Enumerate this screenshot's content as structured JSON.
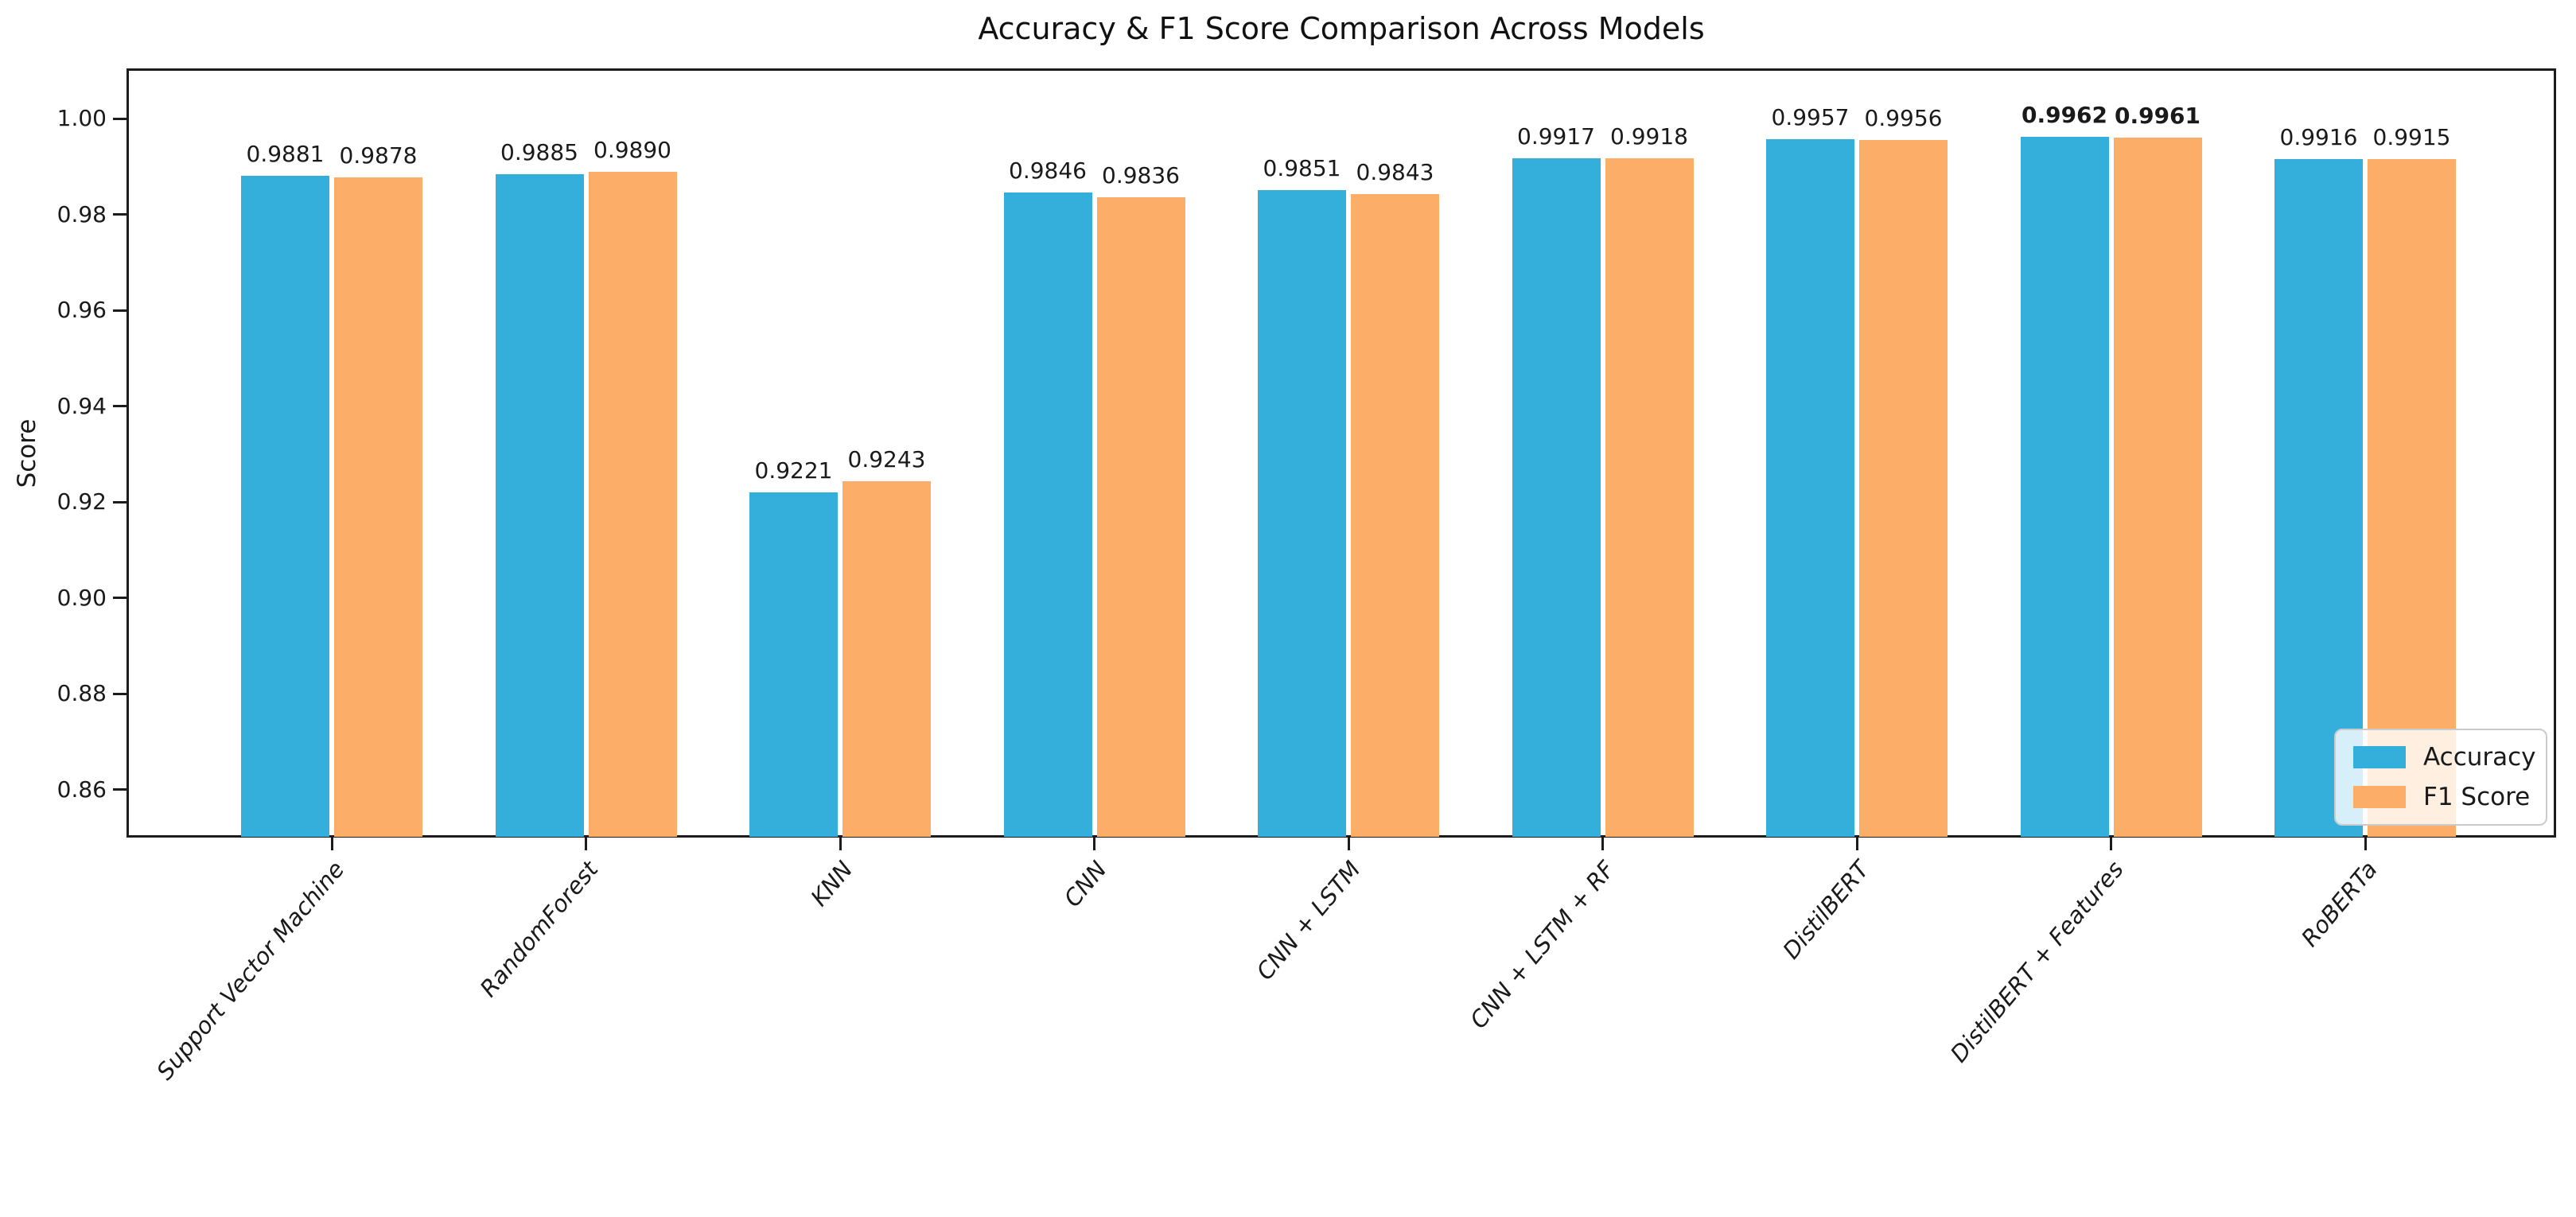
{
  "chart_data": {
    "type": "bar",
    "title": "Accuracy & F1 Score Comparison Across Models",
    "xlabel": "",
    "ylabel": "Score",
    "categories": [
      "Support Vector Machine",
      "RandomForest",
      "KNN",
      "CNN",
      "CNN + LSTM",
      "CNN + LSTM + RF",
      "DistilBERT",
      "DistilBERT + Features",
      "RoBERTa"
    ],
    "series": [
      {
        "name": "Accuracy",
        "color": "#34AEDA",
        "values": [
          0.9881,
          0.9885,
          0.9221,
          0.9846,
          0.9851,
          0.9917,
          0.9957,
          0.9962,
          0.9916
        ]
      },
      {
        "name": "F1 Score",
        "color": "#FCAE68",
        "values": [
          0.9878,
          0.989,
          0.9243,
          0.9836,
          0.9843,
          0.9918,
          0.9956,
          0.9961,
          0.9915
        ]
      }
    ],
    "bar_value_decimals": 4,
    "highlight_category_index": 7,
    "yticks": [
      0.86,
      0.88,
      0.9,
      0.92,
      0.94,
      0.96,
      0.98,
      1.0
    ],
    "ylim": [
      0.85,
      1.0105
    ],
    "grid": false,
    "legend": {
      "position": "lower-right",
      "entries": [
        "Accuracy",
        "F1 Score"
      ]
    },
    "axis_color": "#1c1c1c",
    "text_color": "#1a1a1a"
  }
}
